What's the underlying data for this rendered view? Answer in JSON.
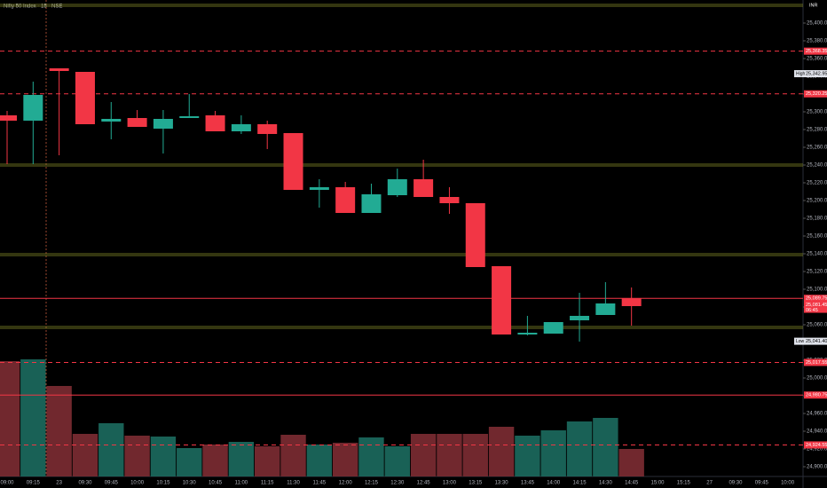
{
  "chart_data": {
    "type": "candlestick",
    "title": "Nifty 50 Index · 15 · NSE",
    "currency": "INR",
    "up_color": "#22ab94",
    "down_color": "#f23645",
    "x": [
      "09:00",
      "09:15",
      "23",
      "09:30",
      "09:45",
      "10:00",
      "10:15",
      "10:30",
      "10:45",
      "11:00",
      "11:15",
      "11:30",
      "11:45",
      "12:00",
      "12:15",
      "12:30",
      "12:45",
      "13:00",
      "13:15",
      "13:30",
      "13:45",
      "14:00",
      "14:15",
      "14:30",
      "14:45",
      "15:00",
      "15:15",
      "27",
      "09:30",
      "09:45",
      "10:00"
    ],
    "open": [
      25296,
      25290,
      25349,
      25345,
      25289,
      25293,
      25281,
      25293,
      25296,
      25278,
      25286,
      25276,
      25212,
      25215,
      25186,
      25206,
      25224,
      25204,
      25197,
      25126,
      25049,
      25050,
      25065,
      25071,
      25090,
      null,
      null,
      null,
      null,
      null,
      null
    ],
    "high": [
      25301,
      25334,
      25349,
      25345,
      25311,
      25302,
      25302,
      25320,
      25301,
      25296,
      25290,
      25276,
      25224,
      25221,
      25219,
      25236,
      25246,
      25215,
      25197,
      25126,
      25070,
      25063,
      25096,
      25108,
      25102,
      null,
      null,
      null,
      null,
      null,
      null
    ],
    "low": [
      25241,
      25241,
      25251,
      25286,
      25269,
      25283,
      25253,
      25293,
      25278,
      25275,
      25258,
      25212,
      25192,
      25186,
      25186,
      25204,
      25204,
      25185,
      25125,
      25049,
      25048,
      25050,
      25041,
      25071,
      25059,
      null,
      null,
      null,
      null,
      null,
      null
    ],
    "close": [
      25290,
      25319,
      25346,
      25286,
      25292,
      25283,
      25292,
      25295,
      25278,
      25286,
      25275,
      25212,
      25215,
      25186,
      25207,
      25224,
      25204,
      25197,
      25125,
      25049,
      25051,
      25063,
      25070,
      25084,
      25081,
      null,
      null,
      null,
      null,
      null,
      null
    ],
    "volume": [
      130,
      132,
      102,
      48,
      60,
      46,
      45,
      32,
      36,
      39,
      34,
      47,
      36,
      38,
      44,
      34,
      48,
      48,
      48,
      56,
      46,
      52,
      62,
      66,
      31,
      null,
      null,
      null,
      null,
      null,
      null
    ],
    "ylim": [
      24889,
      25426
    ],
    "yticks": [
      {
        "value": 25400,
        "label": "25,400.00"
      },
      {
        "value": 25380,
        "label": "25,380.00"
      },
      {
        "value": 25360,
        "label": "25,360.00"
      },
      {
        "value": 25340,
        "label": "25,340.00"
      },
      {
        "value": 25320,
        "label": "25,320.00"
      },
      {
        "value": 25300,
        "label": "25,300.00"
      },
      {
        "value": 25280,
        "label": "25,280.00"
      },
      {
        "value": 25260,
        "label": "25,260.00"
      },
      {
        "value": 25240,
        "label": "25,240.00"
      },
      {
        "value": 25220,
        "label": "25,220.00"
      },
      {
        "value": 25200,
        "label": "25,200.00"
      },
      {
        "value": 25180,
        "label": "25,180.00"
      },
      {
        "value": 25160,
        "label": "25,160.00"
      },
      {
        "value": 25140,
        "label": "25,140.00"
      },
      {
        "value": 25120,
        "label": "25,120.00"
      },
      {
        "value": 25100,
        "label": "25,100.00"
      },
      {
        "value": 25080,
        "label": "25,080.00"
      },
      {
        "value": 25060,
        "label": "25,060.00"
      },
      {
        "value": 25040,
        "label": "25,040.00"
      },
      {
        "value": 25020,
        "label": "25,020.00"
      },
      {
        "value": 25000,
        "label": "25,000.00"
      },
      {
        "value": 24980,
        "label": "24,980.00"
      },
      {
        "value": 24960,
        "label": "24,960.00"
      },
      {
        "value": 24940,
        "label": "24,940.00"
      },
      {
        "value": 24920,
        "label": "24,920.00"
      },
      {
        "value": 24900,
        "label": "24,900.00"
      }
    ],
    "levels": [
      {
        "value": 25420,
        "color": "#8a8f2a",
        "style": "double"
      },
      {
        "value": 25368.35,
        "label": "25,368.35",
        "color": "#f23645",
        "style": "dashed"
      },
      {
        "value": 25320.25,
        "label": "25,320.25",
        "color": "#f23645",
        "style": "dashed"
      },
      {
        "value": 25240,
        "color": "#8a8f2a",
        "style": "double"
      },
      {
        "value": 25139,
        "color": "#8a8f2a",
        "style": "double"
      },
      {
        "value": 25089.75,
        "label": "25,089.75",
        "color": "#f23645",
        "style": "solid"
      },
      {
        "value": 25057,
        "color": "#8a8f2a",
        "style": "double"
      },
      {
        "value": 25017.55,
        "label": "25,017.55",
        "color": "#f23645",
        "style": "dashed"
      },
      {
        "value": 24980.75,
        "label": "24,980.75",
        "color": "#f23645",
        "style": "solid"
      },
      {
        "value": 24924.55,
        "label": "24,924.55",
        "color": "#f23645",
        "style": "dashed"
      }
    ],
    "high_marker": {
      "tag": "High",
      "value": 25342.95,
      "label": "25,342.95"
    },
    "low_marker": {
      "tag": "Low",
      "value": 25041.4,
      "label": "25,041.40"
    },
    "last_price": {
      "value": 25081.45,
      "label": "25,081.45",
      "countdown": "06:45"
    }
  }
}
